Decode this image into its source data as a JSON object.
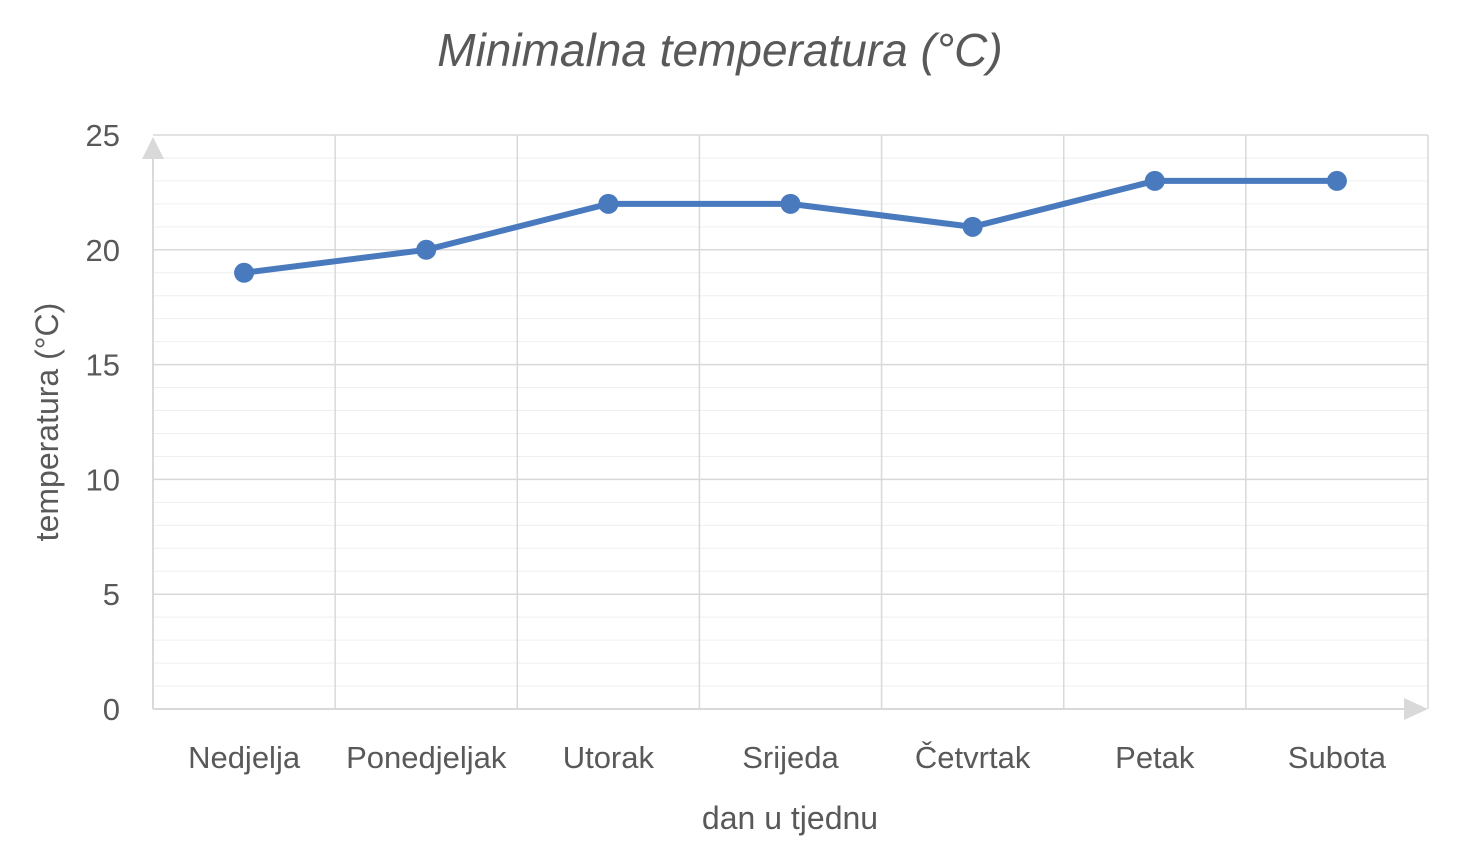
{
  "chart_data": {
    "type": "line",
    "title": "Minimalna temperatura (°C)",
    "xlabel": "dan u tjednu",
    "ylabel": "temperatura (°C)",
    "categories": [
      "Nedjelja",
      "Ponedjeljak",
      "Utorak",
      "Srijeda",
      "Četvrtak",
      "Petak",
      "Subota"
    ],
    "series": [
      {
        "values": [
          19,
          20,
          22,
          22,
          21,
          23,
          23
        ]
      }
    ],
    "ylim": [
      0,
      25
    ],
    "yticks": [
      0,
      5,
      10,
      15,
      20,
      25
    ],
    "minor_gridlines_per_major": 5,
    "grid": true,
    "markers": true,
    "colors": {
      "series": "#4a7abe",
      "grid": "#d9d9d9",
      "text": "#595959"
    }
  }
}
